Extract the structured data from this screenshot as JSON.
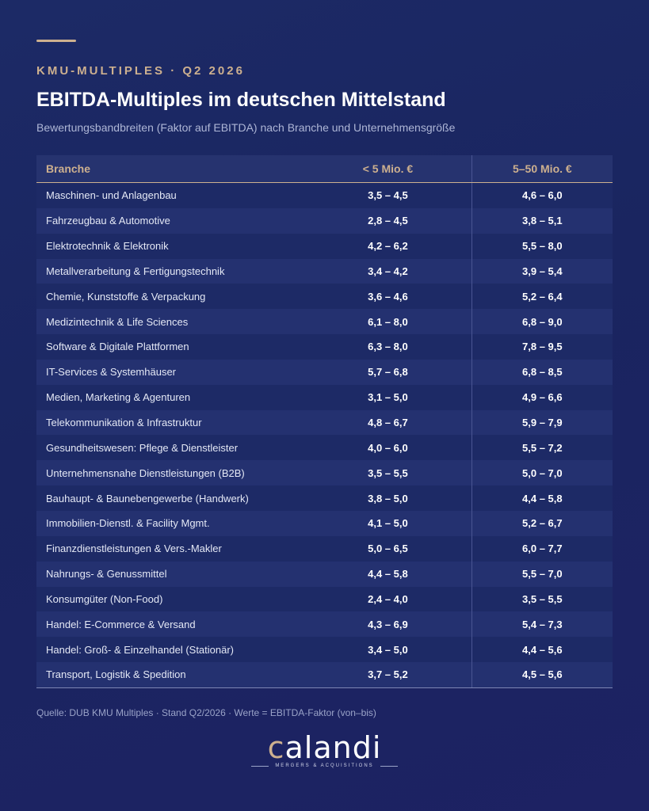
{
  "header": {
    "eyebrow": "KMU-MULTIPLES · Q2 2026",
    "title": "EBITDA-Multiples im deutschen Mittelstand",
    "subtitle": "Bewertungsbandbreiten (Faktor auf EBITDA) nach Branche und Unternehmensgröße"
  },
  "table": {
    "columns": [
      "Branche",
      "< 5 Mio. €",
      "5–50 Mio. €"
    ],
    "rows": [
      [
        "Maschinen- und Anlagenbau",
        "3,5 – 4,5",
        "4,6 – 6,0"
      ],
      [
        "Fahrzeugbau & Automotive",
        "2,8 – 4,5",
        "3,8 – 5,1"
      ],
      [
        "Elektrotechnik & Elektronik",
        "4,2 – 6,2",
        "5,5 – 8,0"
      ],
      [
        "Metallverarbeitung & Fertigungstechnik",
        "3,4 – 4,2",
        "3,9 – 5,4"
      ],
      [
        "Chemie, Kunststoffe & Verpackung",
        "3,6 – 4,6",
        "5,2 – 6,4"
      ],
      [
        "Medizintechnik & Life Sciences",
        "6,1 – 8,0",
        "6,8 – 9,0"
      ],
      [
        "Software & Digitale Plattformen",
        "6,3 – 8,0",
        "7,8 – 9,5"
      ],
      [
        "IT-Services & Systemhäuser",
        "5,7 – 6,8",
        "6,8 – 8,5"
      ],
      [
        "Medien, Marketing & Agenturen",
        "3,1 – 5,0",
        "4,9 – 6,6"
      ],
      [
        "Telekommunikation & Infrastruktur",
        "4,8 – 6,7",
        "5,9 – 7,9"
      ],
      [
        "Gesundheitswesen: Pflege & Dienstleister",
        "4,0 – 6,0",
        "5,5 – 7,2"
      ],
      [
        "Unternehmensnahe Dienstleistungen (B2B)",
        "3,5 – 5,5",
        "5,0 – 7,0"
      ],
      [
        "Bauhaupt- & Baunebengewerbe (Handwerk)",
        "3,8 – 5,0",
        "4,4 – 5,8"
      ],
      [
        "Immobilien-Dienstl. & Facility Mgmt.",
        "4,1 – 5,0",
        "5,2 – 6,7"
      ],
      [
        "Finanzdienstleistungen & Vers.-Makler",
        "5,0 – 6,5",
        "6,0 – 7,7"
      ],
      [
        "Nahrungs- & Genussmittel",
        "4,4 – 5,8",
        "5,5 – 7,0"
      ],
      [
        "Konsumgüter (Non-Food)",
        "2,4 – 4,0",
        "3,5 – 5,5"
      ],
      [
        "Handel: E-Commerce & Versand",
        "4,3 – 6,9",
        "5,4 – 7,3"
      ],
      [
        "Handel: Groß- & Einzelhandel (Stationär)",
        "3,4 – 5,0",
        "4,4 – 5,6"
      ],
      [
        "Transport, Logistik & Spedition",
        "3,7 – 5,2",
        "4,5 – 5,6"
      ]
    ]
  },
  "footer": {
    "source": "Quelle: DUB KMU Multiples · Stand Q2/2026 · Werte = EBITDA-Faktor (von–bis)"
  },
  "logo": {
    "first_letter": "c",
    "rest": "alandi",
    "tagline": "MERGERS & ACQUISITIONS"
  },
  "colors": {
    "accent": "#cdb08f",
    "background": "#1c2a66"
  }
}
